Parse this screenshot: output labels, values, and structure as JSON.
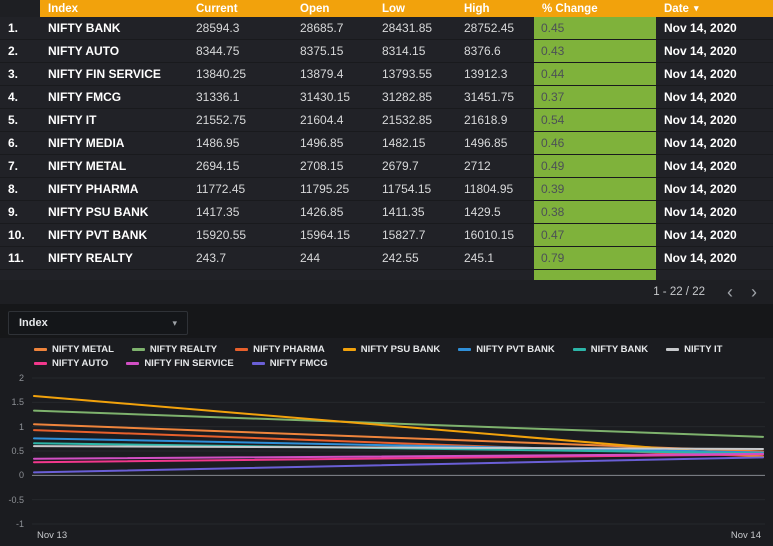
{
  "table": {
    "headers": [
      "Index",
      "Current",
      "Open",
      "Low",
      "High",
      "% Change",
      "Date"
    ],
    "sorted_by": "Date",
    "rows": [
      {
        "num": "1.",
        "index": "NIFTY BANK",
        "current": "28594.3",
        "open": "28685.7",
        "low": "28431.85",
        "high": "28752.45",
        "change": "0.45",
        "date": "Nov 14, 2020"
      },
      {
        "num": "2.",
        "index": "NIFTY AUTO",
        "current": "8344.75",
        "open": "8375.15",
        "low": "8314.15",
        "high": "8376.6",
        "change": "0.43",
        "date": "Nov 14, 2020"
      },
      {
        "num": "3.",
        "index": "NIFTY FIN SERVICE",
        "current": "13840.25",
        "open": "13879.4",
        "low": "13793.55",
        "high": "13912.3",
        "change": "0.44",
        "date": "Nov 14, 2020"
      },
      {
        "num": "4.",
        "index": "NIFTY FMCG",
        "current": "31336.1",
        "open": "31430.15",
        "low": "31282.85",
        "high": "31451.75",
        "change": "0.37",
        "date": "Nov 14, 2020"
      },
      {
        "num": "5.",
        "index": "NIFTY IT",
        "current": "21552.75",
        "open": "21604.4",
        "low": "21532.85",
        "high": "21618.9",
        "change": "0.54",
        "date": "Nov 14, 2020"
      },
      {
        "num": "6.",
        "index": "NIFTY MEDIA",
        "current": "1486.95",
        "open": "1496.85",
        "low": "1482.15",
        "high": "1496.85",
        "change": "0.46",
        "date": "Nov 14, 2020"
      },
      {
        "num": "7.",
        "index": "NIFTY METAL",
        "current": "2694.15",
        "open": "2708.15",
        "low": "2679.7",
        "high": "2712",
        "change": "0.49",
        "date": "Nov 14, 2020"
      },
      {
        "num": "8.",
        "index": "NIFTY PHARMA",
        "current": "11772.45",
        "open": "11795.25",
        "low": "11754.15",
        "high": "11804.95",
        "change": "0.39",
        "date": "Nov 14, 2020"
      },
      {
        "num": "9.",
        "index": "NIFTY PSU BANK",
        "current": "1417.35",
        "open": "1426.85",
        "low": "1411.35",
        "high": "1429.5",
        "change": "0.38",
        "date": "Nov 14, 2020"
      },
      {
        "num": "10.",
        "index": "NIFTY PVT BANK",
        "current": "15920.55",
        "open": "15964.15",
        "low": "15827.7",
        "high": "16010.15",
        "change": "0.47",
        "date": "Nov 14, 2020"
      },
      {
        "num": "11.",
        "index": "NIFTY REALTY",
        "current": "243.7",
        "open": "244",
        "low": "242.55",
        "high": "245.1",
        "change": "0.79",
        "date": "Nov 14, 2020"
      }
    ],
    "pagination": {
      "label": "1 - 22 / 22"
    }
  },
  "icons": {
    "sort_caret": "▾",
    "chevron_down": "▾",
    "page_prev": "‹",
    "page_next": "›"
  },
  "controls": {
    "index_dropdown": {
      "value": "Index"
    }
  },
  "colors": {
    "header_bg": "#f2a20c",
    "positive_cell_bg": "#7fb23b"
  },
  "chart_data": {
    "type": "line",
    "x": [
      "Nov 13",
      "Nov 14"
    ],
    "ylim": [
      -1,
      2
    ],
    "yticks": [
      2,
      1.5,
      1,
      0.5,
      0,
      -0.5,
      -1
    ],
    "grid": true,
    "legend_position": "top",
    "series": [
      {
        "name": "NIFTY METAL",
        "color": "#ef843c",
        "values": [
          1.05,
          0.49
        ]
      },
      {
        "name": "NIFTY REALTY",
        "color": "#7eb26d",
        "values": [
          1.33,
          0.79
        ]
      },
      {
        "name": "NIFTY PHARMA",
        "color": "#e8602c",
        "values": [
          0.93,
          0.39
        ]
      },
      {
        "name": "NIFTY PSU BANK",
        "color": "#f2a20c",
        "values": [
          1.63,
          0.38
        ]
      },
      {
        "name": "NIFTY PVT BANK",
        "color": "#2f8fd8",
        "values": [
          0.76,
          0.47
        ]
      },
      {
        "name": "NIFTY BANK",
        "color": "#2cb5a8",
        "values": [
          0.66,
          0.45
        ]
      },
      {
        "name": "NIFTY IT",
        "color": "#c7c9cc",
        "values": [
          0.6,
          0.54
        ]
      },
      {
        "name": "NIFTY AUTO",
        "color": "#f2388c",
        "values": [
          0.27,
          0.43
        ]
      },
      {
        "name": "NIFTY FIN SERVICE",
        "color": "#d14fc4",
        "values": [
          0.34,
          0.44
        ]
      },
      {
        "name": "NIFTY FMCG",
        "color": "#6a5fd6",
        "values": [
          0.06,
          0.37
        ]
      }
    ]
  }
}
